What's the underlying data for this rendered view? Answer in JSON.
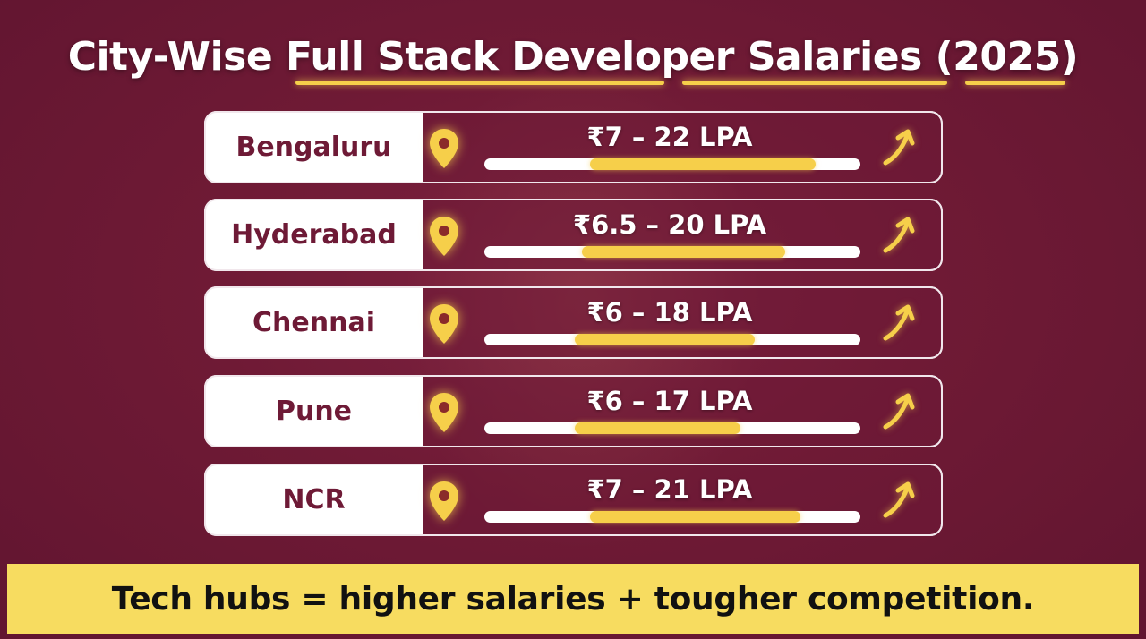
{
  "title": "City-Wise Full Stack Developer Salaries (2025)",
  "footer": "Tech hubs = higher salaries + tougher competition.",
  "colors": {
    "background": "#6f1a35",
    "accent": "#f6cf4a",
    "city_text": "#6e1a36",
    "footer_bg": "#f7dc60"
  },
  "icons": {
    "location": "location-pin-icon",
    "trend": "trend-up-arrow-icon"
  },
  "chart_data": {
    "type": "bar",
    "title": "City-Wise Full Stack Developer Salaries (2025)",
    "categories": [
      "Bengaluru",
      "Hyderabad",
      "Chennai",
      "Pune",
      "NCR"
    ],
    "unit": "LPA",
    "series": [
      {
        "name": "",
        "ranges": [
          [
            7,
            22
          ],
          [
            6.5,
            20
          ],
          [
            6,
            18
          ],
          [
            6,
            17
          ],
          [
            7,
            21
          ]
        ]
      }
    ],
    "labels": [
      "₹7 – 22 LPA",
      "₹6.5 – 20 LPA",
      "₹6 – 18 LPA",
      "₹6 – 17 LPA",
      "₹7 – 21 LPA"
    ],
    "xlim": [
      0,
      25
    ]
  }
}
